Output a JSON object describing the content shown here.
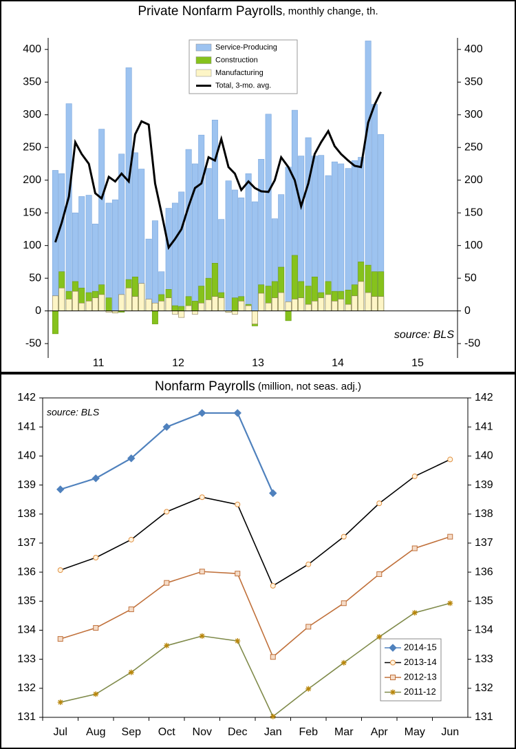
{
  "chart_data": [
    {
      "type": "bar",
      "title": "Private Nonfarm Payrolls",
      "subtitle": ", monthly change, th.",
      "annotation": "source: BLS",
      "x": [
        2010.96,
        2011.04,
        2011.13,
        2011.21,
        2011.29,
        2011.38,
        2011.46,
        2011.54,
        2011.63,
        2011.71,
        2011.79,
        2011.88,
        2011.96,
        2012.04,
        2012.13,
        2012.21,
        2012.29,
        2012.38,
        2012.46,
        2012.54,
        2012.63,
        2012.71,
        2012.79,
        2012.88,
        2012.96,
        2013.04,
        2013.13,
        2013.21,
        2013.29,
        2013.38,
        2013.46,
        2013.54,
        2013.63,
        2013.71,
        2013.79,
        2013.88,
        2013.96,
        2014.04,
        2014.13,
        2014.21,
        2014.29,
        2014.38,
        2014.46,
        2014.54,
        2014.63,
        2014.71,
        2014.79,
        2014.88,
        2014.96,
        2015.04
      ],
      "xlim": [
        2010.87,
        2016.0
      ],
      "xticks": [
        {
          "value": 2011.5,
          "label": "11"
        },
        {
          "value": 2012.5,
          "label": "12"
        },
        {
          "value": 2013.5,
          "label": "13"
        },
        {
          "value": 2014.5,
          "label": "14"
        },
        {
          "value": 2015.5,
          "label": "15"
        }
      ],
      "ylim": [
        -72,
        444
      ],
      "yticks": [
        -50,
        0,
        50,
        100,
        150,
        200,
        250,
        300,
        350,
        400
      ],
      "y2lim": [
        -72,
        444
      ],
      "y2ticks": [
        -50,
        0,
        50,
        100,
        150,
        200,
        250,
        300,
        350,
        400
      ],
      "legend": "top",
      "series": [
        {
          "name": "Service-Producing",
          "type": "bar",
          "color": "#9dc3f0",
          "values": [
            215,
            210,
            317,
            150,
            175,
            177,
            133,
            278,
            165,
            170,
            240,
            372,
            242,
            217,
            110,
            138,
            60,
            157,
            165,
            182,
            247,
            225,
            269,
            218,
            292,
            140,
            199,
            185,
            173,
            210,
            167,
            232,
            301,
            141,
            178,
            220,
            307,
            237,
            265,
            237,
            238,
            207,
            228,
            225,
            218,
            230,
            235,
            413,
            316,
            270
          ]
        },
        {
          "name": "Construction",
          "type": "bar",
          "color": "#86c21c",
          "values": [
            -35,
            60,
            30,
            45,
            35,
            28,
            30,
            40,
            20,
            -3,
            -2,
            48,
            52,
            40,
            15,
            -20,
            25,
            33,
            8,
            7,
            22,
            15,
            38,
            50,
            73,
            28,
            -2,
            20,
            22,
            10,
            -23,
            40,
            38,
            45,
            67,
            -15,
            85,
            45,
            38,
            52,
            28,
            45,
            30,
            30,
            32,
            40,
            75,
            70,
            60,
            60
          ]
        },
        {
          "name": "Manufacturing",
          "type": "bar",
          "color": "#fdf5c6",
          "values": [
            23,
            35,
            18,
            30,
            12,
            15,
            20,
            25,
            -2,
            -3,
            25,
            35,
            22,
            42,
            18,
            12,
            15,
            20,
            -5,
            -10,
            8,
            -5,
            12,
            17,
            22,
            20,
            -2,
            -5,
            15,
            8,
            -20,
            27,
            12,
            20,
            28,
            14,
            18,
            20,
            10,
            15,
            20,
            25,
            15,
            18,
            10,
            23,
            45,
            28,
            22,
            22
          ]
        },
        {
          "name": "Total, 3-mo. avg.",
          "type": "line",
          "color": "#000000",
          "values": [
            105,
            135,
            175,
            258,
            240,
            225,
            180,
            172,
            205,
            198,
            210,
            198,
            270,
            290,
            285,
            195,
            150,
            97,
            110,
            125,
            160,
            188,
            195,
            235,
            230,
            263,
            220,
            210,
            185,
            198,
            188,
            183,
            182,
            200,
            235,
            220,
            200,
            160,
            195,
            240,
            258,
            275,
            252,
            240,
            230,
            222,
            220,
            288,
            315,
            335
          ]
        }
      ]
    },
    {
      "type": "line",
      "title": "Nonfarm Payrolls",
      "subtitle": " (million, not seas. adj.)",
      "annotation": "source: BLS",
      "categories": [
        "Jul",
        "Aug",
        "Sep",
        "Oct",
        "Nov",
        "Dec",
        "Jan",
        "Feb",
        "Mar",
        "Apr",
        "May",
        "Jun"
      ],
      "ylim": [
        131,
        142
      ],
      "yticks": [
        131,
        132,
        133,
        134,
        135,
        136,
        137,
        138,
        139,
        140,
        141,
        142
      ],
      "y2lim": [
        131,
        142
      ],
      "y2ticks": [
        131,
        132,
        133,
        134,
        135,
        136,
        137,
        138,
        139,
        140,
        141,
        142
      ],
      "legend": "bottom-right",
      "series": [
        {
          "name": "2014-15",
          "color": "#4f81bd",
          "marker": "diamond",
          "marker_fill": "#4f81bd",
          "values": [
            138.85,
            139.23,
            139.92,
            141.0,
            141.48,
            141.48,
            138.72,
            null,
            null,
            null,
            null,
            null
          ]
        },
        {
          "name": "2013-14",
          "color": "#000000",
          "marker": "circle",
          "marker_fill": "#fff3e0",
          "values": [
            136.07,
            136.5,
            137.12,
            138.08,
            138.58,
            138.33,
            135.53,
            136.27,
            137.22,
            138.37,
            139.3,
            139.88
          ]
        },
        {
          "name": "2012-13",
          "color": "#c0703a",
          "marker": "square",
          "marker_fill": "#f5dcc8",
          "values": [
            133.7,
            134.08,
            134.72,
            135.63,
            136.02,
            135.95,
            133.08,
            134.12,
            134.93,
            135.93,
            136.82,
            137.22
          ]
        },
        {
          "name": "2011-12",
          "color": "#7f8a4a",
          "marker": "star",
          "marker_fill": "#b8860b",
          "values": [
            131.52,
            131.8,
            132.55,
            133.47,
            133.8,
            133.63,
            131.03,
            131.98,
            132.88,
            133.77,
            134.6,
            134.93
          ]
        }
      ]
    }
  ]
}
